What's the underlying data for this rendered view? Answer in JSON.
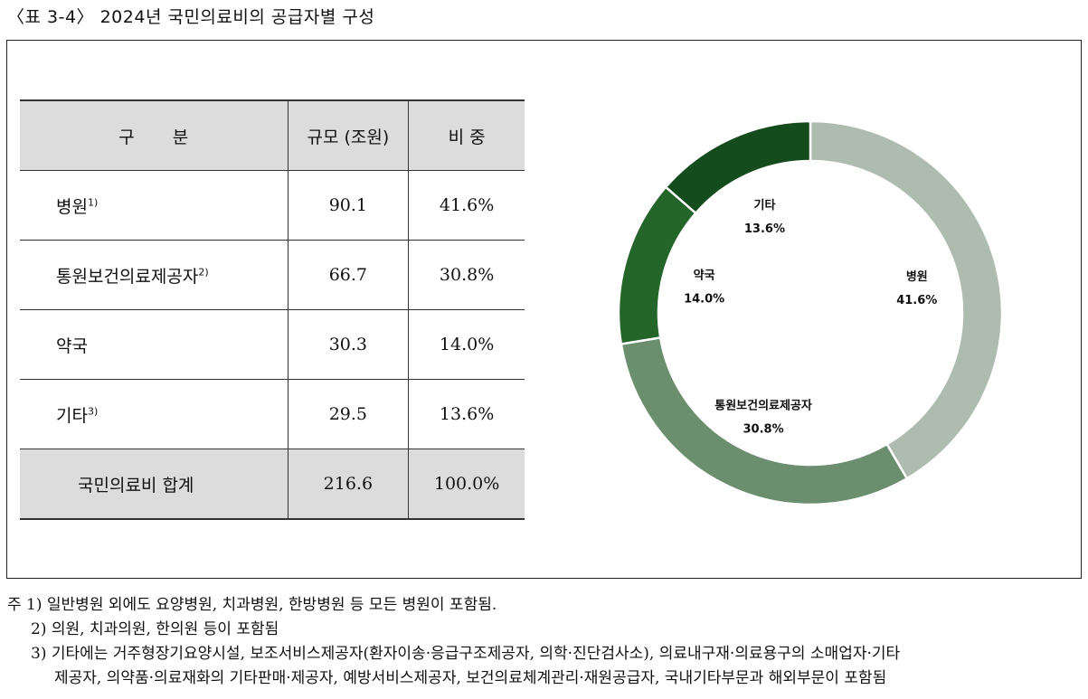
{
  "title": "〈표 3-4〉 2024년 국민의료비의 공급자별 구성",
  "table": {
    "headers": [
      "구 분",
      "규모 (조원)",
      "비 중"
    ],
    "rows": [
      {
        "label": "병원",
        "sup": "1)",
        "amount": "90.1",
        "share": "41.6%"
      },
      {
        "label": "통원보건의료제공자",
        "sup": "2)",
        "amount": "66.7",
        "share": "30.8%"
      },
      {
        "label": "약국",
        "sup": "",
        "amount": "30.3",
        "share": "14.0%"
      },
      {
        "label": "기타",
        "sup": "3)",
        "amount": "29.5",
        "share": "13.6%"
      }
    ],
    "total": {
      "label": "국민의료비 합계",
      "amount": "216.6",
      "share": "100.0%"
    }
  },
  "chart_data": {
    "type": "pie",
    "style": "donut",
    "categories": [
      "병원",
      "통원보건의료제공자",
      "약국",
      "기타"
    ],
    "values": [
      41.6,
      30.8,
      14.0,
      13.6
    ],
    "value_labels": [
      "41.6%",
      "30.8%",
      "14.0%",
      "13.6%"
    ],
    "colors": [
      "#aebcaf",
      "#6b8f6e",
      "#24662a",
      "#154c1d"
    ]
  },
  "notes": [
    "주 1) 일반병원 외에도 요양병원, 치과병원, 한방병원 등 모든 병원이 포함됨.",
    "2) 의원, 치과의원, 한의원 등이 포함됨",
    "3) 기타에는 거주형장기요양시설, 보조서비스제공자(환자이송·응급구조제공자, 의학·진단검사소), 의료내구재·의료용구의 소매업자·기타",
    "제공자, 의약품·의료재화의 기타판매·제공자, 예방서비스제공자, 보건의료체계관리·재원공급자, 국내기타부문과 해외부문이 포함됨"
  ]
}
